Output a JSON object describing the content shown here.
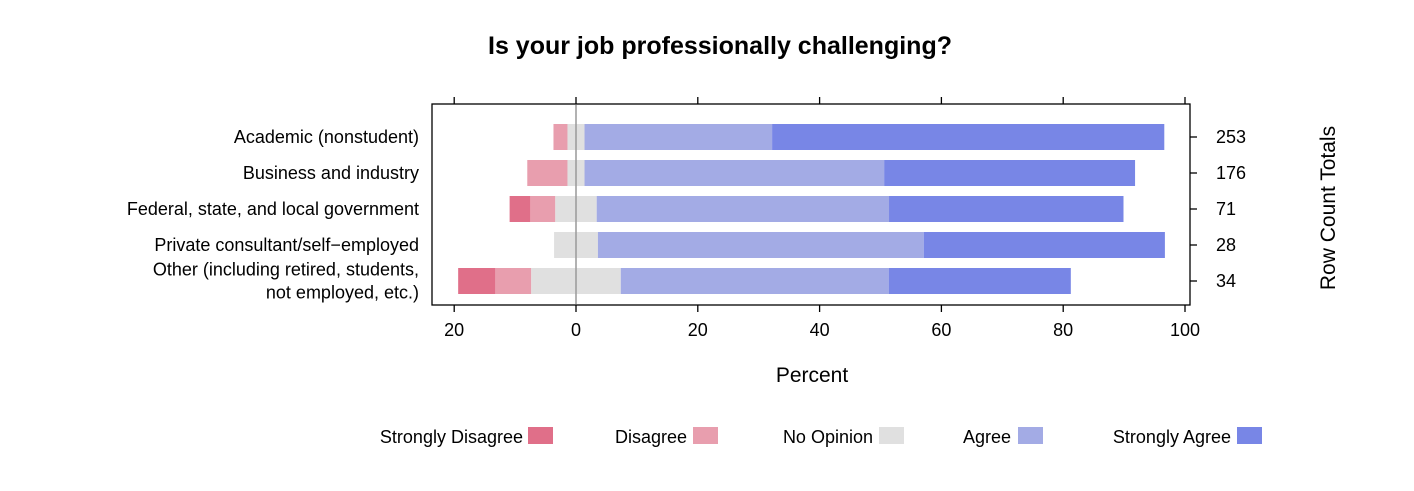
{
  "chart_data": {
    "type": "bar",
    "orientation": "horizontal",
    "stacking": "diverging",
    "title": "Is your job professionally challenging?",
    "xlabel": "Percent",
    "right_axis_label": "Row Count Totals",
    "xlim": [
      -20,
      100
    ],
    "x_ticks": [
      -20,
      0,
      20,
      40,
      60,
      80,
      100
    ],
    "x_tick_labels": [
      "20",
      "0",
      "20",
      "40",
      "60",
      "80",
      "100"
    ],
    "categories": [
      "Academic (nonstudent)",
      "Business and industry",
      "Federal, state, and local government",
      "Private consultant/self−employed",
      "Other (including retired, students,\nnot employed, etc.)"
    ],
    "row_totals": [
      "253",
      "176",
      "71",
      "28",
      "34"
    ],
    "series": [
      {
        "name": "Strongly Disagree",
        "color": "#E06F89",
        "values": [
          0,
          0,
          3.4,
          0,
          6.1
        ]
      },
      {
        "name": "Disagree",
        "color": "#E89EAE",
        "values": [
          2.3,
          6.6,
          4.1,
          0,
          5.9
        ]
      },
      {
        "name": "No Opinion",
        "color": "#E0E0E0",
        "values": [
          2.8,
          2.8,
          6.8,
          7.2,
          14.7
        ]
      },
      {
        "name": "Agree",
        "color": "#A3ABE5",
        "values": [
          30.8,
          49.2,
          48.0,
          53.5,
          44.0
        ]
      },
      {
        "name": "Strongly Agree",
        "color": "#7886E6",
        "values": [
          64.4,
          41.2,
          38.5,
          39.6,
          29.9
        ]
      }
    ],
    "legend_position": "bottom",
    "grid": false,
    "zero_line": true
  }
}
